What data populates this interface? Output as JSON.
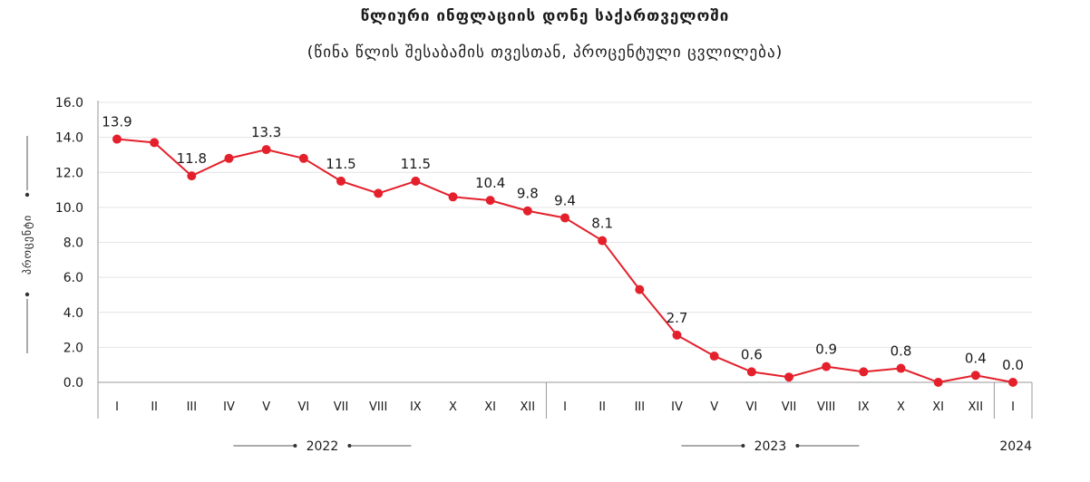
{
  "chart_data": {
    "type": "line",
    "title": "წლიური ინფლაციის დონე საქართველოში",
    "subtitle": "(წინა წლის შესაბამის თვესთან, პროცენტული ცვლილება)",
    "ylabel": "პროცენტი",
    "ylim": [
      0,
      16
    ],
    "yticks": [
      "0.0",
      "2.0",
      "4.0",
      "6.0",
      "8.0",
      "10.0",
      "12.0",
      "14.0",
      "16.0"
    ],
    "grid": true,
    "categories": [
      "I",
      "II",
      "III",
      "IV",
      "V",
      "VI",
      "VII",
      "VIII",
      "IX",
      "X",
      "XI",
      "XII",
      "I",
      "II",
      "III",
      "IV",
      "V",
      "VI",
      "VII",
      "VIII",
      "IX",
      "X",
      "XI",
      "XII",
      "I"
    ],
    "year_groups": [
      {
        "label": "2022",
        "start": 0,
        "end": 11
      },
      {
        "label": "2023",
        "start": 12,
        "end": 23
      },
      {
        "label": "2024",
        "start": 24,
        "end": 24
      }
    ],
    "series": [
      {
        "color": "#e3202b",
        "values": [
          13.9,
          13.7,
          11.8,
          12.8,
          13.3,
          12.8,
          11.5,
          10.8,
          11.5,
          10.6,
          10.4,
          9.8,
          9.4,
          8.1,
          5.3,
          2.7,
          1.5,
          0.6,
          0.3,
          0.9,
          0.6,
          0.8,
          0.0,
          0.4,
          0.0
        ],
        "labels": [
          "13.9",
          "",
          "11.8",
          "",
          "13.3",
          "",
          "11.5",
          "",
          "11.5",
          "",
          "10.4",
          "9.8",
          "9.4",
          "8.1",
          "",
          "2.7",
          "",
          "0.6",
          "",
          "0.9",
          "",
          "0.8",
          "",
          "0.4",
          "0.0"
        ]
      }
    ]
  }
}
